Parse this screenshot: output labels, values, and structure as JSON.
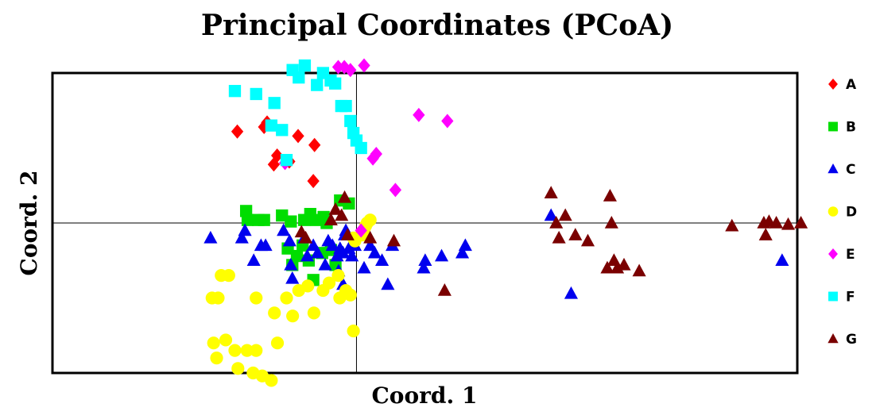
{
  "chart_data": {
    "type": "scatter",
    "title": "Principal Coordinates (PCoA)",
    "xlabel": "Coord. 1",
    "ylabel": "Coord. 2",
    "xlim": [
      -1.0,
      1.45
    ],
    "ylim": [
      -1.0,
      1.0
    ],
    "legend_position": "right",
    "grid": false,
    "zero_lines": true,
    "series": [
      {
        "name": "A",
        "marker": "diamond",
        "color": "#ff0000",
        "points": [
          [
            -0.392,
            0.61
          ],
          [
            -0.304,
            0.64
          ],
          [
            -0.294,
            0.67
          ],
          [
            -0.261,
            0.45
          ],
          [
            -0.192,
            0.58
          ],
          [
            -0.138,
            0.52
          ],
          [
            -0.221,
            0.41
          ],
          [
            -0.142,
            0.28
          ],
          [
            -0.272,
            0.39
          ]
        ]
      },
      {
        "name": "B",
        "marker": "square",
        "color": "#00dd00",
        "points": [
          [
            -0.363,
            0.08
          ],
          [
            -0.358,
            0.02
          ],
          [
            -0.323,
            0.02
          ],
          [
            -0.304,
            0.02
          ],
          [
            -0.245,
            0.05
          ],
          [
            -0.216,
            0.01
          ],
          [
            -0.172,
            0.02
          ],
          [
            -0.152,
            0.06
          ],
          [
            -0.133,
            0.02
          ],
          [
            -0.108,
            0.04
          ],
          [
            -0.098,
            0.0
          ],
          [
            -0.054,
            0.15
          ],
          [
            -0.025,
            0.13
          ],
          [
            -0.226,
            -0.17
          ],
          [
            -0.211,
            -0.28
          ],
          [
            -0.196,
            -0.22
          ],
          [
            -0.177,
            -0.15
          ],
          [
            -0.157,
            -0.25
          ],
          [
            -0.142,
            -0.38
          ],
          [
            -0.113,
            -0.2
          ],
          [
            -0.084,
            -0.18
          ],
          [
            -0.069,
            -0.28
          ]
        ]
      },
      {
        "name": "C",
        "marker": "triangle",
        "color": "#0000ee",
        "points": [
          [
            -0.48,
            -0.1
          ],
          [
            -0.377,
            -0.1
          ],
          [
            -0.367,
            -0.05
          ],
          [
            -0.338,
            -0.25
          ],
          [
            -0.314,
            -0.15
          ],
          [
            -0.299,
            -0.15
          ],
          [
            -0.24,
            -0.05
          ],
          [
            -0.22,
            -0.12
          ],
          [
            -0.216,
            -0.28
          ],
          [
            -0.211,
            -0.37
          ],
          [
            -0.172,
            -0.1
          ],
          [
            -0.162,
            -0.22
          ],
          [
            -0.142,
            -0.15
          ],
          [
            -0.128,
            -0.2
          ],
          [
            -0.103,
            -0.28
          ],
          [
            -0.093,
            -0.12
          ],
          [
            -0.079,
            -0.15
          ],
          [
            -0.064,
            -0.22
          ],
          [
            -0.054,
            -0.17
          ],
          [
            -0.044,
            -0.2
          ],
          [
            -0.039,
            -0.08
          ],
          [
            -0.035,
            -0.05
          ],
          [
            -0.025,
            -0.17
          ],
          [
            -0.015,
            -0.22
          ],
          [
            -0.005,
            -0.15
          ],
          [
            0.025,
            -0.3
          ],
          [
            0.045,
            -0.15
          ],
          [
            0.06,
            -0.2
          ],
          [
            0.084,
            -0.25
          ],
          [
            0.103,
            -0.41
          ],
          [
            0.221,
            -0.3
          ],
          [
            0.226,
            -0.25
          ],
          [
            0.28,
            -0.22
          ],
          [
            0.358,
            -0.15
          ],
          [
            0.348,
            -0.2
          ],
          [
            -0.059,
            -0.32
          ],
          [
            -0.044,
            -0.41
          ],
          [
            0.118,
            -0.15
          ],
          [
            0.64,
            0.05
          ],
          [
            0.706,
            -0.47
          ],
          [
            1.4,
            -0.25
          ]
        ]
      },
      {
        "name": "D",
        "marker": "circle",
        "color": "#ffff00",
        "points": [
          [
            -0.475,
            -0.5
          ],
          [
            -0.455,
            -0.5
          ],
          [
            -0.445,
            -0.35
          ],
          [
            -0.47,
            -0.8
          ],
          [
            -0.46,
            -0.9
          ],
          [
            -0.42,
            -0.35
          ],
          [
            -0.43,
            -0.78
          ],
          [
            -0.4,
            -0.85
          ],
          [
            -0.39,
            -0.97
          ],
          [
            -0.36,
            -0.85
          ],
          [
            -0.34,
            -1.0
          ],
          [
            -0.33,
            -0.5
          ],
          [
            -0.33,
            -0.85
          ],
          [
            -0.31,
            -1.02
          ],
          [
            -0.28,
            -1.05
          ],
          [
            -0.27,
            -0.6
          ],
          [
            -0.26,
            -0.8
          ],
          [
            -0.23,
            -0.5
          ],
          [
            -0.21,
            -0.62
          ],
          [
            -0.19,
            -0.45
          ],
          [
            -0.16,
            -0.42
          ],
          [
            -0.14,
            -0.6
          ],
          [
            -0.11,
            -0.45
          ],
          [
            -0.09,
            -0.4
          ],
          [
            -0.06,
            -0.35
          ],
          [
            -0.055,
            -0.5
          ],
          [
            -0.035,
            -0.45
          ],
          [
            -0.02,
            -0.48
          ],
          [
            -0.01,
            -0.72
          ],
          [
            0.02,
            -0.08
          ],
          [
            0.025,
            -0.05
          ],
          [
            0.03,
            -0.02
          ],
          [
            0.035,
            0.0
          ],
          [
            0.045,
            0.02
          ],
          [
            -0.005,
            -0.12
          ],
          [
            -0.01,
            -0.1
          ]
        ]
      },
      {
        "name": "E",
        "marker": "diamond",
        "color": "#ff00ff",
        "points": [
          [
            -0.06,
            1.04
          ],
          [
            -0.04,
            1.04
          ],
          [
            -0.02,
            1.02
          ],
          [
            0.025,
            1.05
          ],
          [
            0.205,
            0.72
          ],
          [
            0.299,
            0.68
          ],
          [
            0.054,
            0.43
          ],
          [
            0.065,
            0.46
          ],
          [
            -0.235,
            0.4
          ],
          [
            0.128,
            0.22
          ],
          [
            0.015,
            -0.05
          ]
        ]
      },
      {
        "name": "F",
        "marker": "square",
        "color": "#00ffff",
        "points": [
          [
            -0.4,
            0.88
          ],
          [
            -0.33,
            0.86
          ],
          [
            -0.27,
            0.8
          ],
          [
            -0.21,
            1.02
          ],
          [
            -0.19,
            0.97
          ],
          [
            -0.17,
            1.05
          ],
          [
            -0.13,
            0.92
          ],
          [
            -0.11,
            1.0
          ],
          [
            -0.085,
            0.95
          ],
          [
            -0.07,
            0.93
          ],
          [
            -0.05,
            0.78
          ],
          [
            -0.035,
            0.78
          ],
          [
            -0.02,
            0.68
          ],
          [
            -0.01,
            0.6
          ],
          [
            0.0,
            0.55
          ],
          [
            -0.245,
            0.62
          ],
          [
            -0.23,
            0.42
          ],
          [
            -0.28,
            0.65
          ],
          [
            0.015,
            0.5
          ]
        ]
      },
      {
        "name": "G",
        "marker": "triangle",
        "color": "#7a0000",
        "points": [
          [
            -0.039,
            0.17
          ],
          [
            -0.049,
            0.05
          ],
          [
            -0.069,
            0.09
          ],
          [
            -0.084,
            0.02
          ],
          [
            -0.181,
            -0.06
          ],
          [
            -0.167,
            -0.1
          ],
          [
            -0.029,
            -0.08
          ],
          [
            0.045,
            -0.1
          ],
          [
            0.123,
            -0.12
          ],
          [
            0.29,
            -0.45
          ],
          [
            0.64,
            0.2
          ],
          [
            0.657,
            0.0
          ],
          [
            0.666,
            -0.1
          ],
          [
            0.687,
            0.05
          ],
          [
            0.72,
            -0.08
          ],
          [
            0.761,
            -0.12
          ],
          [
            0.834,
            0.18
          ],
          [
            0.839,
            0.0
          ],
          [
            0.825,
            -0.3
          ],
          [
            0.847,
            -0.25
          ],
          [
            0.858,
            -0.3
          ],
          [
            0.88,
            -0.28
          ],
          [
            0.93,
            -0.32
          ],
          [
            1.235,
            -0.02
          ],
          [
            1.346,
            -0.08
          ],
          [
            1.34,
            0.0
          ],
          [
            1.357,
            0.01
          ],
          [
            1.381,
            0.0
          ],
          [
            1.42,
            -0.01
          ],
          [
            1.462,
            0.0
          ]
        ]
      }
    ]
  }
}
